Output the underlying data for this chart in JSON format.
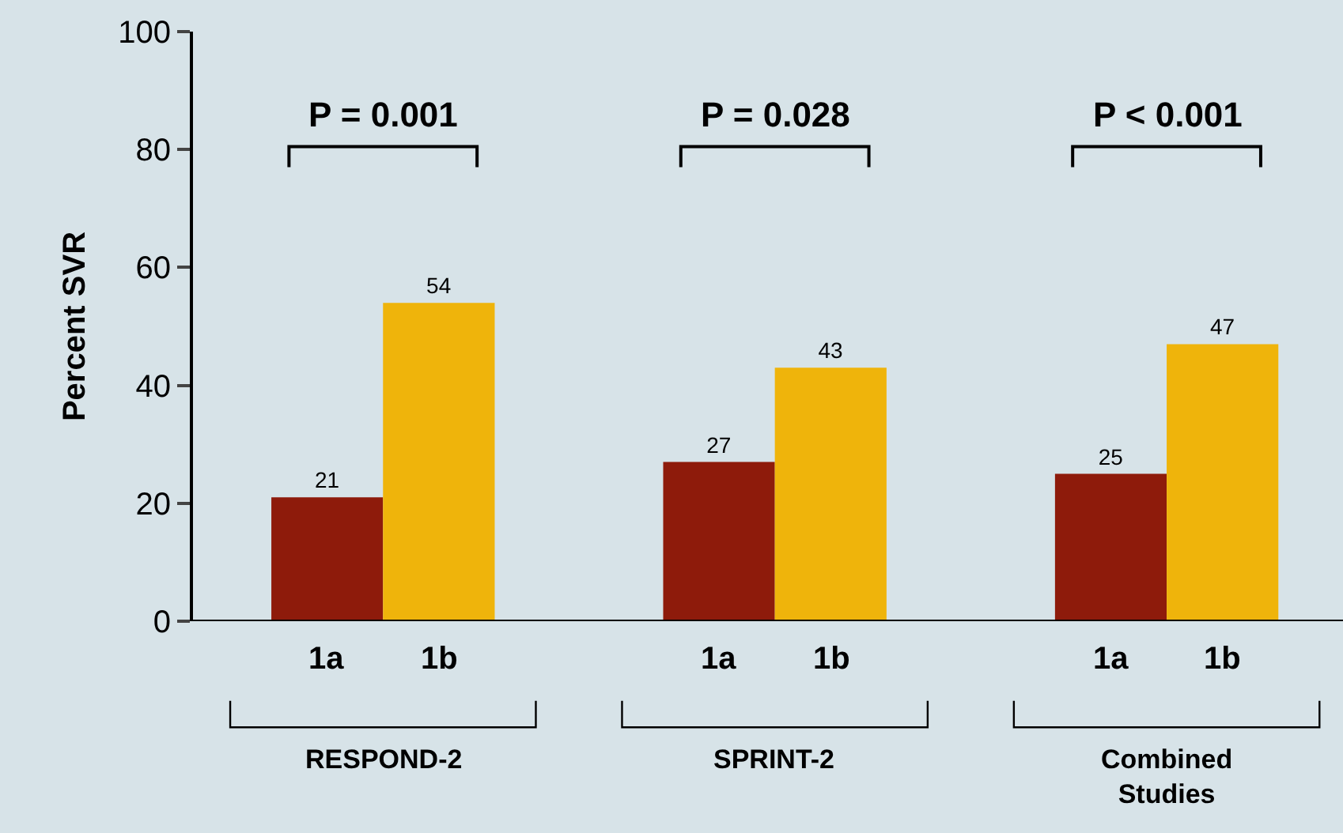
{
  "chart_data": {
    "type": "bar",
    "ylabel": "Percent SVR",
    "categories": [
      "RESPOND-2",
      "SPRINT-2",
      "Combined Studies"
    ],
    "series": [
      {
        "name": "1a",
        "color": "#8e1b0b",
        "values": [
          21,
          27,
          25
        ]
      },
      {
        "name": "1b",
        "color": "#efb40b",
        "values": [
          54,
          43,
          47
        ]
      }
    ],
    "ylim": [
      0,
      100
    ],
    "yticks": [
      0,
      20,
      40,
      60,
      80,
      100
    ],
    "data_labels": true,
    "grid": false,
    "legend": false,
    "annotations": [
      "P = 0.001",
      "P = 0.028",
      "P < 0.001"
    ]
  }
}
